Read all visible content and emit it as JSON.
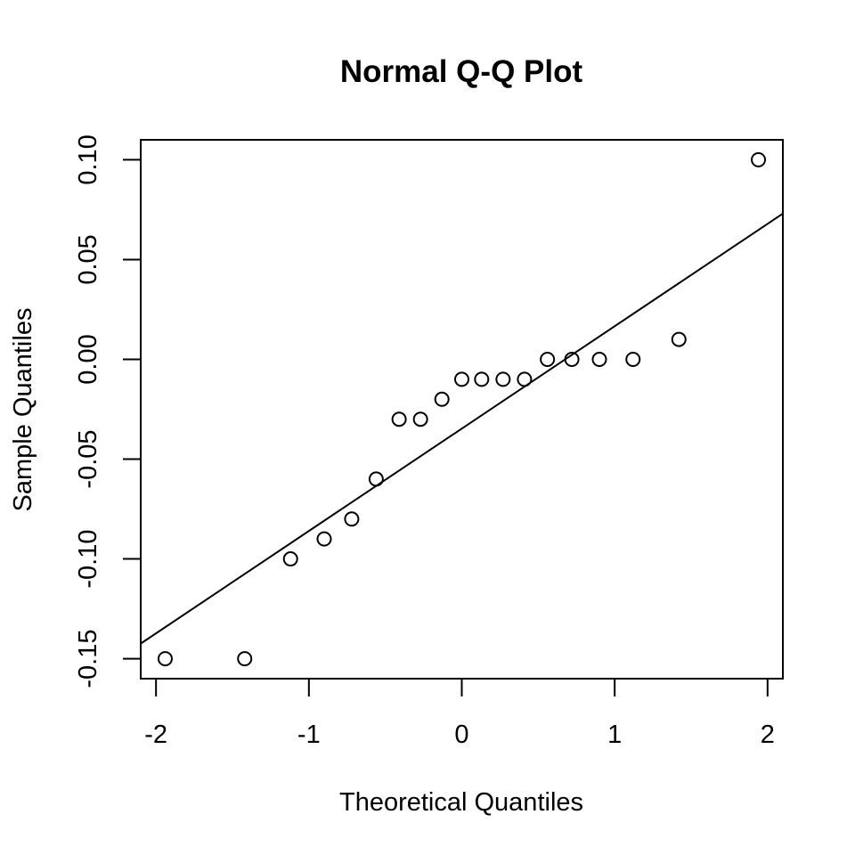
{
  "chart_data": {
    "type": "scatter",
    "title": "Normal Q-Q Plot",
    "xlabel": "Theoretical Quantiles",
    "ylabel": "Sample Quantiles",
    "xlim": [
      -2.1,
      2.1
    ],
    "ylim": [
      -0.16,
      0.11
    ],
    "x_ticks": [
      -2,
      -1,
      0,
      1,
      2
    ],
    "x_tick_labels": [
      "-2",
      "-1",
      "0",
      "1",
      "2"
    ],
    "y_ticks": [
      -0.15,
      -0.1,
      -0.05,
      0.0,
      0.05,
      0.1
    ],
    "y_tick_labels": [
      "-0.15",
      "-0.10",
      "-0.05",
      "0.00",
      "0.05",
      "0.10"
    ],
    "grid": false,
    "legend": "none",
    "points": [
      {
        "x": -1.94,
        "y": -0.15
      },
      {
        "x": -1.42,
        "y": -0.15
      },
      {
        "x": -1.12,
        "y": -0.1
      },
      {
        "x": -0.9,
        "y": -0.09
      },
      {
        "x": -0.72,
        "y": -0.08
      },
      {
        "x": -0.56,
        "y": -0.06
      },
      {
        "x": -0.41,
        "y": -0.03
      },
      {
        "x": -0.27,
        "y": -0.03
      },
      {
        "x": -0.13,
        "y": -0.02
      },
      {
        "x": 0.0,
        "y": -0.01
      },
      {
        "x": 0.13,
        "y": -0.01
      },
      {
        "x": 0.27,
        "y": -0.01
      },
      {
        "x": 0.41,
        "y": -0.01
      },
      {
        "x": 0.56,
        "y": 0.0
      },
      {
        "x": 0.72,
        "y": 0.0
      },
      {
        "x": 0.9,
        "y": 0.0
      },
      {
        "x": 1.12,
        "y": 0.0
      },
      {
        "x": 1.42,
        "y": 0.01
      },
      {
        "x": 1.94,
        "y": 0.1
      }
    ],
    "reference_line": {
      "intercept": -0.0347,
      "slope": 0.0513
    }
  }
}
